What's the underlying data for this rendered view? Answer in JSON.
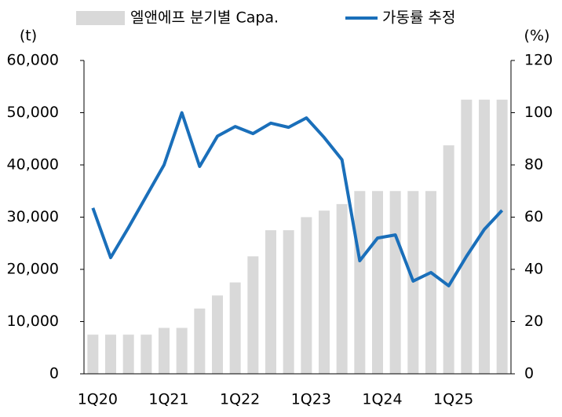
{
  "chart_data": {
    "type": "bar-line",
    "y_unit": "(t)",
    "y2_unit": "(%)",
    "categories": [
      "1Q20",
      null,
      null,
      null,
      "1Q21",
      null,
      null,
      null,
      "1Q22",
      null,
      null,
      null,
      "1Q23",
      null,
      null,
      null,
      "1Q24",
      null,
      null,
      null,
      "1Q25",
      null,
      null,
      null
    ],
    "series": [
      {
        "name": "엘앤에프 분기별 Capa.",
        "type": "bar",
        "color": "#d9d9d9",
        "values": [
          7500,
          7500,
          7500,
          7500,
          8800,
          8800,
          12500,
          15000,
          17500,
          22500,
          27500,
          27500,
          30000,
          31250,
          32500,
          35000,
          35000,
          35000,
          35000,
          35000,
          43750,
          52500,
          52500,
          52500
        ]
      },
      {
        "name": "가동률 추정",
        "type": "line",
        "axis": "y2",
        "color": "#1a6fba",
        "values": [
          63.5,
          44.5,
          56,
          68,
          80,
          100,
          79.4,
          91,
          94.7,
          92,
          96,
          94.4,
          98,
          90.5,
          82,
          43.3,
          52,
          53.2,
          35.5,
          38.8,
          33.7,
          45,
          55.3,
          62.6
        ]
      }
    ],
    "ylim": [
      0,
      60000
    ],
    "yticks": [
      0,
      {
        "value": 10000,
        "label": "10,000"
      },
      {
        "value": 20000,
        "label": "20,000"
      },
      {
        "value": 30000,
        "label": "30,000"
      },
      {
        "value": 40000,
        "label": "40,000"
      },
      {
        "value": 50000,
        "label": "50,000"
      },
      {
        "value": 60000,
        "label": "60,000"
      }
    ],
    "y2lim": [
      0,
      120
    ],
    "y2ticks": [
      0,
      20,
      40,
      60,
      80,
      100,
      120
    ],
    "grid": false
  }
}
